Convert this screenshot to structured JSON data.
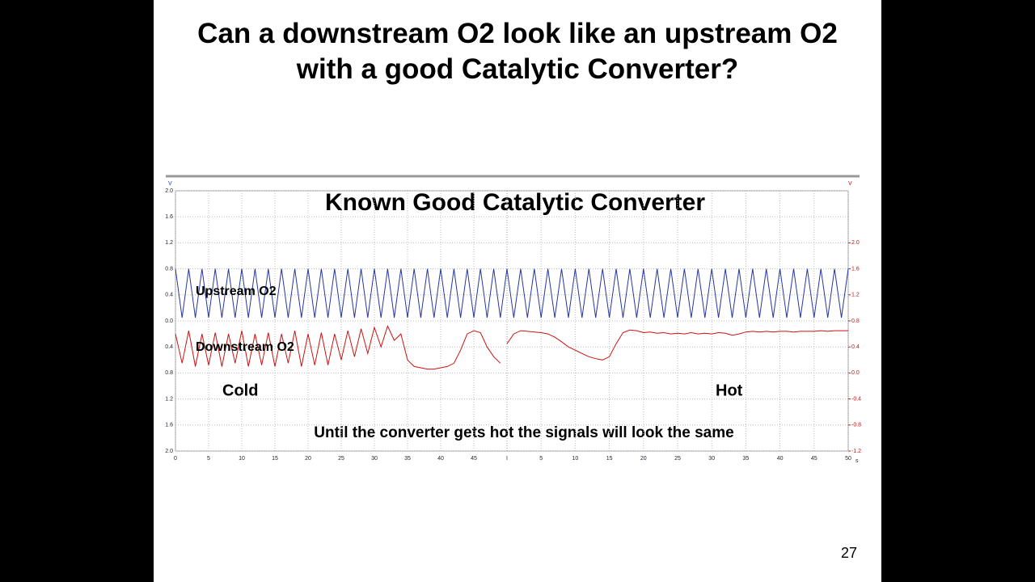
{
  "slide": {
    "title": "Can a downstream O2 look like an upstream O2 with a good Catalytic Converter?",
    "page_number": "27"
  },
  "chart_data": {
    "type": "line",
    "title": "Known Good Catalytic Converter",
    "subtitle": "Until the converter gets hot the signals will look the same",
    "annotations": [
      "Cold",
      "Hot"
    ],
    "y_unit": "V",
    "y2_unit": "V",
    "x_unit": "s",
    "sweep_marker": "I",
    "x": [
      0,
      1,
      2,
      3,
      4,
      5,
      6,
      7,
      8,
      9,
      10,
      11,
      12,
      13,
      14,
      15,
      16,
      17,
      18,
      19,
      20,
      21,
      22,
      23,
      24,
      25,
      26,
      27,
      28,
      29,
      30,
      31,
      32,
      33,
      34,
      35,
      36,
      37,
      38,
      39,
      40,
      41,
      42,
      43,
      44,
      45,
      46,
      47,
      48,
      49,
      50
    ],
    "xlim": [
      0,
      50
    ],
    "xticks": [
      0,
      5,
      10,
      15,
      20,
      25,
      30,
      35,
      40,
      45
    ],
    "x2lim": [
      0,
      50
    ],
    "x2ticks": [
      5,
      10,
      15,
      20,
      25,
      30,
      35,
      40,
      45,
      50
    ],
    "ylim": [
      0,
      2
    ],
    "yticks": [
      {
        "value": 0,
        "label": "0.0"
      },
      0.4,
      0.8,
      1.2,
      1.6,
      {
        "value": 2,
        "label": "2.0"
      }
    ],
    "ylim_lower": [
      0,
      2
    ],
    "yticks_lower": [
      0.4,
      0.8,
      1.2,
      1.6,
      {
        "value": 2,
        "label": "2.0"
      }
    ],
    "y2lim": [
      -1.2,
      2.8
    ],
    "y2ticks": [
      -1.2,
      -0.8,
      -0.4,
      {
        "value": 0,
        "label": "0.0"
      },
      0.4,
      0.8,
      1.2,
      1.6,
      {
        "value": 2,
        "label": "2.0"
      }
    ],
    "grid": true,
    "series": [
      {
        "name": "Upstream O2",
        "color": "#2536a0",
        "axis": "y",
        "sweeps": [
          [
            0.8,
            0.05,
            0.8,
            0.05,
            0.8,
            0.05,
            0.8,
            0.05,
            0.8,
            0.05,
            0.8,
            0.05,
            0.8,
            0.05,
            0.8,
            0.05,
            0.8,
            0.05,
            0.8,
            0.05,
            0.8,
            0.05,
            0.8,
            0.05,
            0.8,
            0.05,
            0.8,
            0.05,
            0.8,
            0.05,
            0.8,
            0.05,
            0.8,
            0.05,
            0.8,
            0.05,
            0.8,
            0.05,
            0.8,
            0.05,
            0.8,
            0.05,
            0.8,
            0.05,
            0.8,
            0.05,
            0.8,
            0.05,
            0.8,
            0.05,
            0.8
          ],
          [
            0.8,
            0.05,
            0.8,
            0.05,
            0.8,
            0.05,
            0.8,
            0.05,
            0.8,
            0.05,
            0.8,
            0.05,
            0.8,
            0.05,
            0.8,
            0.05,
            0.8,
            0.05,
            0.8,
            0.05,
            0.8,
            0.05,
            0.8,
            0.05,
            0.8,
            0.05,
            0.8,
            0.05,
            0.8,
            0.05,
            0.8,
            0.05,
            0.8,
            0.05,
            0.8,
            0.05,
            0.8,
            0.05,
            0.8,
            0.05,
            0.8,
            0.05,
            0.8,
            0.05,
            0.8,
            0.05,
            0.8,
            0.05,
            0.8,
            0.05,
            0.8
          ]
        ]
      },
      {
        "name": "Downstream O2",
        "color": "#cc1111",
        "axis": "y2",
        "sweeps": [
          [
            0.6,
            0.15,
            0.65,
            0.1,
            0.6,
            0.12,
            0.62,
            0.1,
            0.6,
            0.15,
            0.65,
            0.1,
            0.6,
            0.12,
            0.62,
            0.1,
            0.6,
            0.15,
            0.65,
            0.1,
            0.6,
            0.12,
            0.62,
            0.12,
            0.6,
            0.2,
            0.65,
            0.25,
            0.68,
            0.3,
            0.7,
            0.4,
            0.72,
            0.5,
            0.6,
            0.2,
            0.1,
            0.08,
            0.06,
            0.06,
            0.08,
            0.1,
            0.15,
            0.35,
            0.6,
            0.65,
            0.62,
            0.4,
            0.25,
            0.15,
            null
          ],
          [
            0.45,
            0.6,
            0.65,
            0.64,
            0.63,
            0.62,
            0.6,
            0.55,
            0.48,
            0.4,
            0.35,
            0.3,
            0.25,
            0.22,
            0.2,
            0.25,
            0.45,
            0.62,
            0.66,
            0.65,
            0.62,
            0.63,
            0.61,
            0.62,
            0.6,
            0.61,
            0.6,
            0.62,
            0.6,
            0.61,
            0.6,
            0.62,
            0.61,
            0.58,
            0.6,
            0.63,
            0.64,
            0.63,
            0.64,
            0.63,
            0.64,
            0.64,
            0.63,
            0.64,
            0.64,
            0.64,
            0.65,
            0.64,
            0.65,
            0.65,
            0.65
          ]
        ]
      }
    ]
  }
}
